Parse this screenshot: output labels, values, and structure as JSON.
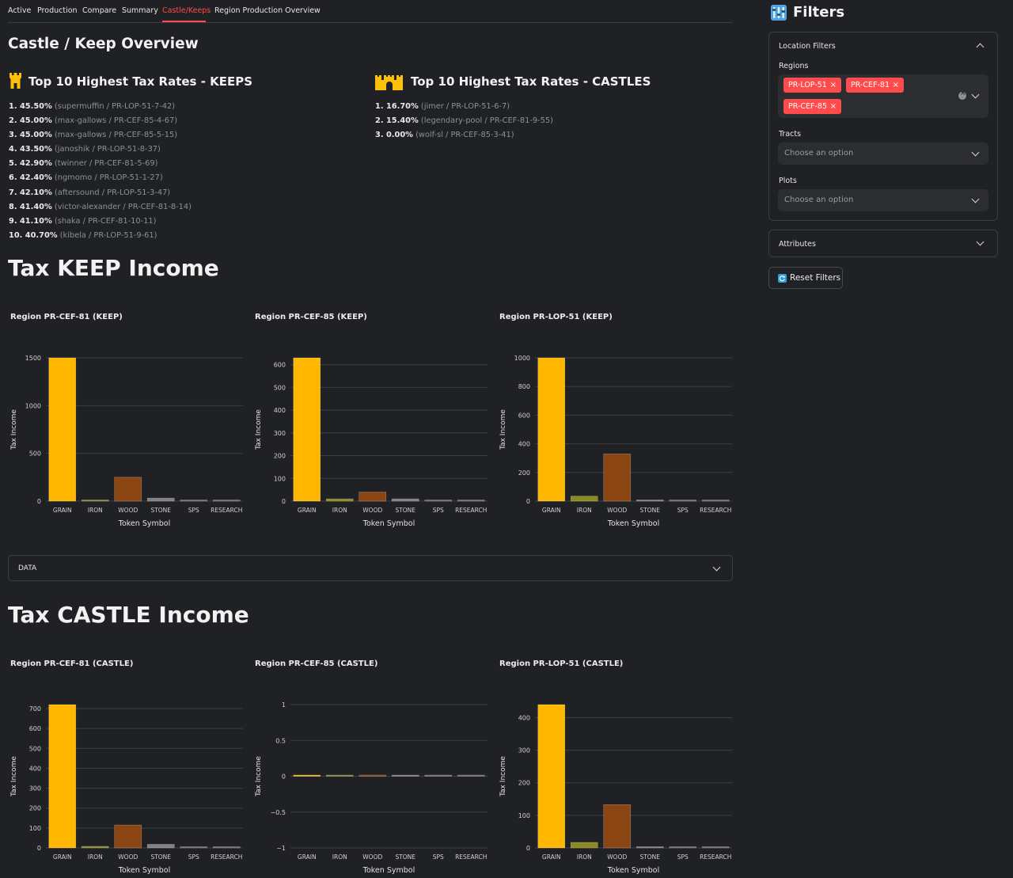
{
  "tabs": [
    {
      "label": "Active"
    },
    {
      "label": "Production"
    },
    {
      "label": "Compare"
    },
    {
      "label": "Summary"
    },
    {
      "label": "Castle/Keeps",
      "active": true
    },
    {
      "label": "Region Production Overview"
    }
  ],
  "overview": {
    "title": "Castle / Keep Overview",
    "keeps": {
      "heading": "Top 10 Highest Tax Rates - KEEPS",
      "items": [
        {
          "rank": "1.",
          "rate": "45.50%",
          "detail": "(supermuffin / PR-LOP-51-7-42)"
        },
        {
          "rank": "2.",
          "rate": "45.00%",
          "detail": "(max-gallows / PR-CEF-85-4-67)"
        },
        {
          "rank": "3.",
          "rate": "45.00%",
          "detail": "(max-gallows / PR-CEF-85-5-15)"
        },
        {
          "rank": "4.",
          "rate": "43.50%",
          "detail": "(janoshik / PR-LOP-51-8-37)"
        },
        {
          "rank": "5.",
          "rate": "42.90%",
          "detail": "(twinner / PR-CEF-81-5-69)"
        },
        {
          "rank": "6.",
          "rate": "42.40%",
          "detail": "(ngmomo / PR-LOP-51-1-27)"
        },
        {
          "rank": "7.",
          "rate": "42.10%",
          "detail": "(aftersound / PR-LOP-51-3-47)"
        },
        {
          "rank": "8.",
          "rate": "41.40%",
          "detail": "(victor-alexander / PR-CEF-81-8-14)"
        },
        {
          "rank": "9.",
          "rate": "41.10%",
          "detail": "(shaka / PR-CEF-81-10-11)"
        },
        {
          "rank": "10.",
          "rate": "40.70%",
          "detail": "(kibela / PR-LOP-51-9-61)"
        }
      ]
    },
    "castles": {
      "heading": "Top 10 Highest Tax Rates - CASTLES",
      "items": [
        {
          "rank": "1.",
          "rate": "16.70%",
          "detail": "(jimer / PR-LOP-51-6-7)"
        },
        {
          "rank": "2.",
          "rate": "15.40%",
          "detail": "(legendary-pool / PR-CEF-81-9-55)"
        },
        {
          "rank": "3.",
          "rate": "0.00%",
          "detail": "(wolf-sl / PR-CEF-85-3-41)"
        }
      ]
    }
  },
  "keep_section": {
    "title": "Tax KEEP Income"
  },
  "castle_section": {
    "title": "Tax CASTLE Income"
  },
  "data_expander": {
    "label": "DATA"
  },
  "colors": {
    "accent": "#ff4b4b",
    "GRAIN": "#ffb700",
    "IRON": "#8a8a1e",
    "WOOD": "#8b4513",
    "STONE": "#808080",
    "SPS": "#6b6b6b",
    "RESEARCH": "#6b6b6b"
  },
  "chart_data": [
    {
      "type": "bar",
      "title": "Region PR-CEF-81 (KEEP)",
      "categories": [
        "GRAIN",
        "IRON",
        "WOOD",
        "STONE",
        "SPS",
        "RESEARCH"
      ],
      "values": [
        1500,
        8,
        250,
        32,
        4,
        3
      ],
      "xlabel": "Token Symbol",
      "ylabel": "Tax Income",
      "ylim": [
        0,
        1500
      ],
      "yticks": [
        0,
        500,
        1000,
        1500
      ],
      "ytick_labels": [
        "0",
        "500",
        "1000",
        "1500"
      ]
    },
    {
      "type": "bar",
      "title": "Region PR-CEF-85 (KEEP)",
      "categories": [
        "GRAIN",
        "IRON",
        "WOOD",
        "STONE",
        "SPS",
        "RESEARCH"
      ],
      "values": [
        630,
        10,
        40,
        10,
        2,
        1
      ],
      "xlabel": "Token Symbol",
      "ylabel": "Tax Income",
      "ylim": [
        0,
        630
      ],
      "yticks": [
        0,
        100,
        200,
        300,
        400,
        500,
        600
      ],
      "ytick_labels": [
        "0",
        "100",
        "200",
        "300",
        "400",
        "500",
        "600"
      ]
    },
    {
      "type": "bar",
      "title": "Region PR-LOP-51 (KEEP)",
      "categories": [
        "GRAIN",
        "IRON",
        "WOOD",
        "STONE",
        "SPS",
        "RESEARCH"
      ],
      "values": [
        1000,
        35,
        330,
        8,
        4,
        3
      ],
      "xlabel": "Token Symbol",
      "ylabel": "Tax Income",
      "ylim": [
        0,
        1000
      ],
      "yticks": [
        0,
        200,
        400,
        600,
        800,
        1000
      ],
      "ytick_labels": [
        "0",
        "200",
        "400",
        "600",
        "800",
        "1000"
      ]
    },
    {
      "type": "bar",
      "title": "Region PR-CEF-81 (CASTLE)",
      "categories": [
        "GRAIN",
        "IRON",
        "WOOD",
        "STONE",
        "SPS",
        "RESEARCH"
      ],
      "values": [
        720,
        8,
        115,
        18,
        3,
        2
      ],
      "xlabel": "Token Symbol",
      "ylabel": "Tax Income",
      "ylim": [
        0,
        720
      ],
      "yticks": [
        0,
        100,
        200,
        300,
        400,
        500,
        600,
        700
      ],
      "ytick_labels": [
        "0",
        "100",
        "200",
        "300",
        "400",
        "500",
        "600",
        "700"
      ]
    },
    {
      "type": "bar",
      "title": "Region PR-CEF-85 (CASTLE)",
      "categories": [
        "GRAIN",
        "IRON",
        "WOOD",
        "STONE",
        "SPS",
        "RESEARCH"
      ],
      "values": [
        0,
        0,
        0,
        0,
        0,
        0
      ],
      "xlabel": "Token Symbol",
      "ylabel": "Tax Income",
      "ylim": [
        -1,
        1
      ],
      "yticks": [
        -1,
        -0.5,
        0,
        0.5,
        1
      ],
      "ytick_labels": [
        "−1",
        "−0.5",
        "0",
        "0.5",
        "1"
      ]
    },
    {
      "type": "bar",
      "title": "Region PR-LOP-51 (CASTLE)",
      "categories": [
        "GRAIN",
        "IRON",
        "WOOD",
        "STONE",
        "SPS",
        "RESEARCH"
      ],
      "values": [
        440,
        17,
        133,
        3,
        2,
        2
      ],
      "xlabel": "Token Symbol",
      "ylabel": "Tax Income",
      "ylim": [
        0,
        440
      ],
      "yticks": [
        0,
        100,
        200,
        300,
        400
      ],
      "ytick_labels": [
        "0",
        "100",
        "200",
        "300",
        "400"
      ]
    }
  ],
  "sidebar": {
    "title": "Filters",
    "location_panel": {
      "label": "Location Filters",
      "regions_label": "Regions",
      "regions_selected": [
        "PR-LOP-51",
        "PR-CEF-81",
        "PR-CEF-85"
      ],
      "tracts_label": "Tracts",
      "tracts_placeholder": "Choose an option",
      "plots_label": "Plots",
      "plots_placeholder": "Choose an option"
    },
    "attributes_panel": {
      "label": "Attributes"
    },
    "reset_button": "Reset Filters"
  }
}
